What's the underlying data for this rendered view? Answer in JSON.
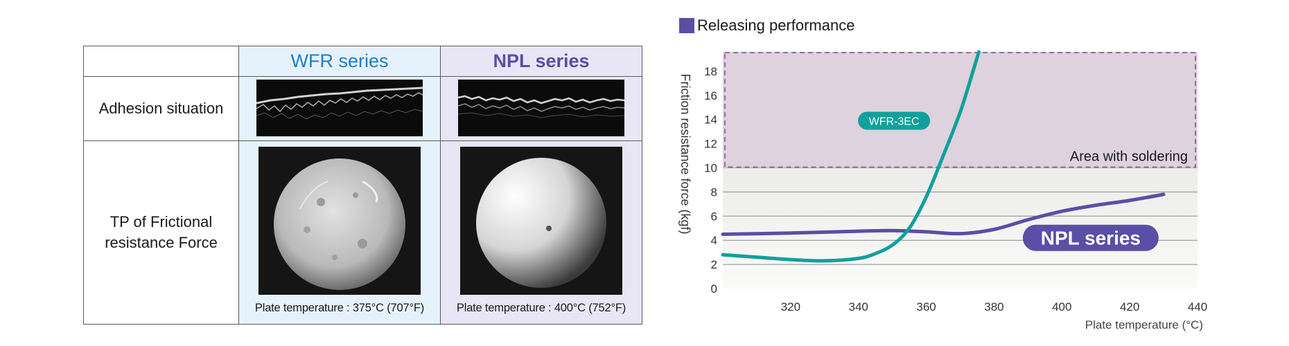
{
  "table": {
    "headers": [
      "",
      "WFR series",
      "NPL series"
    ],
    "rows": [
      {
        "label": "Adhesion situation"
      },
      {
        "label_lines": [
          "TP of Frictional",
          "resistance Force"
        ]
      }
    ],
    "captions": [
      "Plate temperature : 375°C (707°F)",
      "Plate temperature : 400°C (752°F)"
    ],
    "colors": {
      "wfr_header": "#1a7fc9",
      "npl_header": "#5b4ea6"
    }
  },
  "chart_data": {
    "type": "line",
    "title": "Releasing performance",
    "xlabel": "Plate temperature (°C)",
    "ylabel": "Friction resistance force (kgf)",
    "xlim": [
      300,
      440
    ],
    "ylim": [
      0,
      20
    ],
    "x_ticks": [
      320,
      340,
      360,
      380,
      400,
      420,
      440
    ],
    "y_ticks": [
      0,
      2,
      4,
      6,
      8,
      10,
      12,
      14,
      16,
      18
    ],
    "grid": true,
    "shaded_region": {
      "label": "Area with soldering",
      "y_range": [
        10,
        19.6
      ]
    },
    "series": [
      {
        "name": "WFR-3EC",
        "color": "#11a09c",
        "x": [
          300,
          310,
          320,
          330,
          340,
          345,
          350,
          355,
          360,
          365,
          370,
          374,
          375.5
        ],
        "y": [
          2.8,
          2.6,
          2.4,
          2.3,
          2.5,
          2.9,
          3.6,
          5.0,
          7.6,
          11.0,
          14.6,
          18.2,
          19.6
        ]
      },
      {
        "name": "NPL series",
        "color": "#5b4ea6",
        "x": [
          300,
          320,
          340,
          350,
          360,
          370,
          380,
          390,
          400,
          410,
          420,
          430
        ],
        "y": [
          4.5,
          4.6,
          4.75,
          4.8,
          4.7,
          4.55,
          4.9,
          5.7,
          6.4,
          6.9,
          7.3,
          7.8
        ]
      }
    ]
  }
}
